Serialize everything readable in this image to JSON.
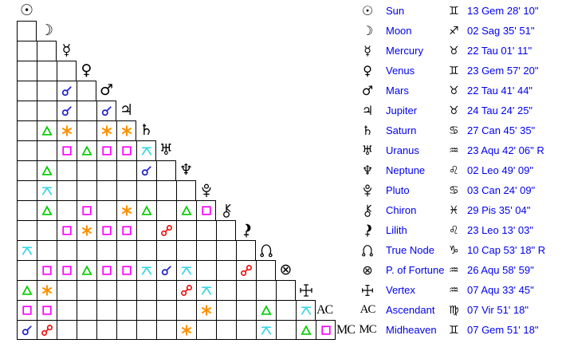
{
  "colors": {
    "background": "#ffffff",
    "grid_line": "#000000",
    "table_text_blue": "#0000ee",
    "aspect": {
      "conjunction": "#2222cc",
      "opposition": "#ee1111",
      "trine": "#00cc00",
      "square": "#ff00ff",
      "sextile": "#ff9000",
      "quincunx": "#3cd6e6"
    }
  },
  "chart_data": [
    {
      "type": "table",
      "title": "Planet positions",
      "columns": [
        "planet_glyph",
        "planet_name",
        "zodiac_sign_glyph",
        "position"
      ],
      "rows": [
        {
          "glyph": "☉",
          "icon": "sun-icon",
          "name": "Sun",
          "sign_glyph": "♊",
          "position": "13 Gem 28' 10\""
        },
        {
          "glyph": "☽",
          "icon": "moon-icon",
          "name": "Moon",
          "sign_glyph": "♐",
          "position": "02 Sag 35' 51\""
        },
        {
          "glyph": "☿",
          "icon": "mercury-icon",
          "name": "Mercury",
          "sign_glyph": "♉",
          "position": "22 Tau 01' 11\""
        },
        {
          "glyph": "♀",
          "icon": "venus-icon",
          "name": "Venus",
          "sign_glyph": "♊",
          "position": "23 Gem 57' 20\""
        },
        {
          "glyph": "♂",
          "icon": "mars-icon",
          "name": "Mars",
          "sign_glyph": "♉",
          "position": "22 Tau 41' 44\""
        },
        {
          "glyph": "♃",
          "icon": "jupiter-icon",
          "name": "Jupiter",
          "sign_glyph": "♉",
          "position": "24 Tau 24' 25\""
        },
        {
          "glyph": "♄",
          "icon": "saturn-icon",
          "name": "Saturn",
          "sign_glyph": "♋",
          "position": "27 Can 45' 35\""
        },
        {
          "glyph": "♅",
          "icon": "uranus-icon",
          "name": "Uranus",
          "sign_glyph": "♒",
          "position": "23 Aqu 42' 06\" R"
        },
        {
          "glyph": "♆",
          "icon": "neptune-icon",
          "name": "Neptune",
          "sign_glyph": "♌",
          "position": "02 Leo 49' 09\""
        },
        {
          "glyph": "svg:pluto",
          "icon": "pluto-icon",
          "name": "Pluto",
          "sign_glyph": "♋",
          "position": "03 Can 24' 09\""
        },
        {
          "glyph": "svg:chiron",
          "icon": "chiron-icon",
          "name": "Chiron",
          "sign_glyph": "♓",
          "position": "29 Pis 35' 04\""
        },
        {
          "glyph": "svg:lilith",
          "icon": "lilith-icon",
          "name": "Lilith",
          "sign_glyph": "♌",
          "position": "23 Leo 13' 03\""
        },
        {
          "glyph": "svg:truenode",
          "icon": "true-node-icon",
          "name": "True Node",
          "sign_glyph": "♑",
          "position": "10 Cap 53' 18\" R"
        },
        {
          "glyph": "⊗",
          "icon": "part-of-fortune-icon",
          "name": "P. of Fortune",
          "sign_glyph": "♒",
          "position": "26 Aqu 58' 59\""
        },
        {
          "glyph": "svg:vertex",
          "icon": "vertex-icon",
          "name": "Vertex",
          "sign_glyph": "♒",
          "position": "07 Aqu 33' 45\""
        },
        {
          "glyph": "AC",
          "icon": "ascendant-label",
          "name": "Ascendant",
          "sign_glyph": "♍",
          "position": "07 Vir 51' 18\""
        },
        {
          "glyph": "MC",
          "icon": "midheaven-label",
          "name": "Midheaven",
          "sign_glyph": "♊",
          "position": "07 Gem 51' 18\""
        }
      ]
    },
    {
      "type": "heatmap",
      "title": "Aspect grid (aspectarian, lower triangle)",
      "planets": [
        "Sun",
        "Moon",
        "Mercury",
        "Venus",
        "Mars",
        "Jupiter",
        "Saturn",
        "Uranus",
        "Neptune",
        "Pluto",
        "Chiron",
        "Lilith",
        "True Node",
        "P. of Fortune",
        "Vertex",
        "Ascendant",
        "Midheaven"
      ],
      "aspect_codes": {
        "c": "conjunction",
        "o": "opposition",
        "t": "trine",
        "s": "square",
        "x": "sextile",
        "q": "quincunx"
      },
      "matrix": [
        [],
        [
          ""
        ],
        [
          "",
          ""
        ],
        [
          "",
          "",
          ""
        ],
        [
          "",
          "",
          "c",
          ""
        ],
        [
          "",
          "",
          "c",
          "",
          "c"
        ],
        [
          "",
          "t",
          "x",
          "",
          "x",
          "x"
        ],
        [
          "",
          "",
          "s",
          "t",
          "s",
          "s",
          "q"
        ],
        [
          "",
          "t",
          "",
          "",
          "",
          "",
          "c",
          ""
        ],
        [
          "",
          "q",
          "",
          "",
          "",
          "",
          "",
          "",
          ""
        ],
        [
          "",
          "t",
          "",
          "s",
          "",
          "x",
          "t",
          "",
          "t",
          "s"
        ],
        [
          "",
          "",
          "s",
          "x",
          "s",
          "s",
          "",
          "o",
          "",
          "",
          ""
        ],
        [
          "q",
          "",
          "",
          "",
          "",
          "",
          "",
          "",
          "",
          "",
          "",
          ""
        ],
        [
          "",
          "s",
          "s",
          "t",
          "s",
          "s",
          "q",
          "c",
          "q",
          "",
          "",
          "o",
          ""
        ],
        [
          "t",
          "x",
          "",
          "",
          "",
          "",
          "",
          "",
          "o",
          "q",
          "",
          "",
          "",
          ""
        ],
        [
          "s",
          "s",
          "",
          "",
          "",
          "",
          "",
          "",
          "",
          "x",
          "",
          "",
          "t",
          "",
          "q"
        ],
        [
          "c",
          "o",
          "",
          "",
          "",
          "",
          "",
          "",
          "x",
          "",
          "",
          "",
          "q",
          "",
          "t",
          "s"
        ]
      ]
    }
  ]
}
